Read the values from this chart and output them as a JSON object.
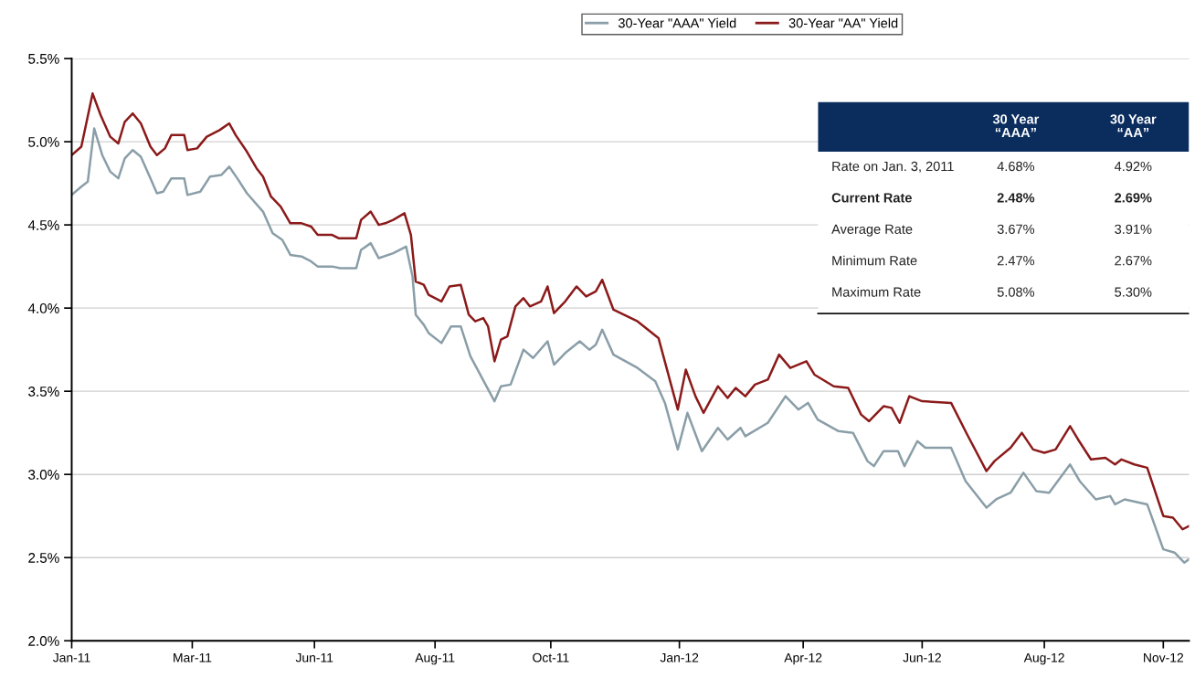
{
  "chart_data": {
    "type": "line",
    "x": [
      "2011-01-03",
      "2011-01-09",
      "2011-01-16",
      "2011-01-21",
      "2011-01-27",
      "2011-02-01",
      "2011-02-05",
      "2011-02-10",
      "2011-02-15",
      "2011-02-21",
      "2011-02-25",
      "2011-03-02",
      "2011-03-06",
      "2011-03-14",
      "2011-03-16",
      "2011-03-22",
      "2011-03-28",
      "2011-04-05",
      "2011-04-11",
      "2011-04-15",
      "2011-04-22",
      "2011-04-28",
      "2011-05-02",
      "2011-05-07",
      "2011-05-13",
      "2011-05-19",
      "2011-05-26",
      "2011-06-01",
      "2011-06-05",
      "2011-06-14",
      "2011-06-18",
      "2011-06-29",
      "2011-07-02",
      "2011-07-08",
      "2011-07-13",
      "2011-07-17",
      "2011-07-22",
      "2011-07-29",
      "2011-08-02",
      "2011-08-05",
      "2011-08-10",
      "2011-08-13",
      "2011-08-21",
      "2011-08-26",
      "2011-09-02",
      "2011-09-07",
      "2011-09-11",
      "2011-09-16",
      "2011-09-19",
      "2011-09-23",
      "2011-09-27",
      "2011-10-01",
      "2011-10-06",
      "2011-10-11",
      "2011-10-15",
      "2011-10-22",
      "2011-10-26",
      "2011-10-30",
      "2011-11-06",
      "2011-11-13",
      "2011-11-19",
      "2011-11-25",
      "2011-11-29",
      "2011-12-06",
      "2011-12-21",
      "2012-01-03",
      "2012-01-15",
      "2012-01-20",
      "2012-01-26",
      "2012-01-31",
      "2012-02-09",
      "2012-02-15",
      "2012-02-20",
      "2012-02-26",
      "2012-03-03",
      "2012-03-11",
      "2012-03-18",
      "2012-03-25",
      "2012-04-04",
      "2012-04-09",
      "2012-04-21",
      "2012-04-30",
      "2012-05-08",
      "2012-05-13",
      "2012-05-22",
      "2012-05-27",
      "2012-06-01",
      "2012-06-07",
      "2012-06-15",
      "2012-07-03",
      "2012-07-13",
      "2012-07-25",
      "2012-07-30",
      "2012-08-09",
      "2012-08-16",
      "2012-08-23",
      "2012-08-30",
      "2012-09-06",
      "2012-09-15",
      "2012-09-20",
      "2012-09-28",
      "2012-10-07",
      "2012-10-13",
      "2012-10-17",
      "2012-10-25",
      "2012-11-02",
      "2012-11-12",
      "2012-11-18",
      "2012-11-24",
      "2012-11-28"
    ],
    "series": [
      {
        "name": "30-Year \"AAA\" Yield",
        "color": "#8a9ea8",
        "x": [
          "2011-01-03",
          "2011-01-09",
          "2011-01-13",
          "2011-01-17",
          "2011-01-22",
          "2011-01-27",
          "2011-02-01",
          "2011-02-05",
          "2011-02-10",
          "2011-02-15",
          "2011-02-21",
          "2011-02-25",
          "2011-03-01",
          "2011-03-06",
          "2011-03-14",
          "2011-03-16",
          "2011-03-24",
          "2011-03-30",
          "2011-04-06",
          "2011-04-11",
          "2011-04-16",
          "2011-04-22",
          "2011-05-02",
          "2011-05-08",
          "2011-05-14",
          "2011-05-19",
          "2011-05-26",
          "2011-06-01",
          "2011-06-05",
          "2011-06-14",
          "2011-06-19",
          "2011-06-29",
          "2011-07-02",
          "2011-07-08",
          "2011-07-13",
          "2011-07-22",
          "2011-07-30",
          "2011-08-03",
          "2011-08-05",
          "2011-08-10",
          "2011-08-13",
          "2011-08-21",
          "2011-08-27",
          "2011-09-02",
          "2011-09-08",
          "2011-09-23",
          "2011-09-27",
          "2011-10-03",
          "2011-10-11",
          "2011-10-17",
          "2011-10-26",
          "2011-10-30",
          "2011-11-06",
          "2011-11-15",
          "2011-11-21",
          "2011-11-25",
          "2011-11-29",
          "2011-12-06",
          "2011-12-21",
          "2012-01-01",
          "2012-01-07",
          "2012-01-15",
          "2012-01-21",
          "2012-01-30",
          "2012-02-09",
          "2012-02-15",
          "2012-02-23",
          "2012-02-26",
          "2012-03-11",
          "2012-03-22",
          "2012-03-30",
          "2012-04-05",
          "2012-04-11",
          "2012-04-24",
          "2012-05-03",
          "2012-05-12",
          "2012-05-16",
          "2012-05-22",
          "2012-05-31",
          "2012-06-04",
          "2012-06-12",
          "2012-06-17",
          "2012-07-03",
          "2012-07-12",
          "2012-07-25",
          "2012-07-31",
          "2012-08-09",
          "2012-08-17",
          "2012-08-25",
          "2012-09-02",
          "2012-09-15",
          "2012-09-21",
          "2012-10-01",
          "2012-10-10",
          "2012-10-13",
          "2012-10-19",
          "2012-11-02",
          "2012-11-12",
          "2012-11-19",
          "2012-11-25",
          "2012-11-28"
        ],
        "values": [
          4.68,
          4.73,
          4.76,
          5.08,
          4.92,
          4.82,
          4.78,
          4.9,
          4.95,
          4.91,
          4.78,
          4.69,
          4.7,
          4.78,
          4.78,
          4.68,
          4.7,
          4.79,
          4.8,
          4.85,
          4.78,
          4.69,
          4.58,
          4.45,
          4.41,
          4.32,
          4.31,
          4.28,
          4.25,
          4.25,
          4.24,
          4.24,
          4.35,
          4.39,
          4.3,
          4.33,
          4.37,
          4.19,
          3.96,
          3.9,
          3.85,
          3.79,
          3.89,
          3.89,
          3.71,
          3.44,
          3.53,
          3.54,
          3.75,
          3.7,
          3.8,
          3.66,
          3.73,
          3.8,
          3.75,
          3.78,
          3.87,
          3.72,
          3.64,
          3.56,
          3.43,
          3.15,
          3.37,
          3.14,
          3.28,
          3.21,
          3.28,
          3.23,
          3.31,
          3.47,
          3.39,
          3.43,
          3.33,
          3.26,
          3.25,
          3.08,
          3.05,
          3.14,
          3.14,
          3.05,
          3.2,
          3.16,
          3.16,
          2.96,
          2.8,
          2.85,
          2.89,
          3.01,
          2.9,
          2.89,
          3.06,
          2.96,
          2.85,
          2.87,
          2.82,
          2.85,
          2.82,
          2.55,
          2.53,
          2.47,
          2.49
        ]
      },
      {
        "name": "30-Year \"AA\" Yield",
        "color": "#8b1a1a",
        "values": [
          4.92,
          4.97,
          5.29,
          5.16,
          5.03,
          4.99,
          5.12,
          5.17,
          5.11,
          4.97,
          4.92,
          4.96,
          5.04,
          5.04,
          4.95,
          4.96,
          5.03,
          5.07,
          5.11,
          5.04,
          4.94,
          4.84,
          4.79,
          4.67,
          4.61,
          4.51,
          4.51,
          4.49,
          4.44,
          4.44,
          4.42,
          4.42,
          4.53,
          4.58,
          4.5,
          4.51,
          4.53,
          4.57,
          4.44,
          4.16,
          4.14,
          4.08,
          4.04,
          4.13,
          4.14,
          3.96,
          3.92,
          3.94,
          3.89,
          3.68,
          3.81,
          3.83,
          4.01,
          4.06,
          4.01,
          4.04,
          4.13,
          3.97,
          4.04,
          4.13,
          4.07,
          4.1,
          4.17,
          3.99,
          3.92,
          3.82,
          3.39,
          3.63,
          3.47,
          3.37,
          3.53,
          3.46,
          3.52,
          3.47,
          3.54,
          3.57,
          3.72,
          3.64,
          3.68,
          3.6,
          3.53,
          3.52,
          3.36,
          3.32,
          3.41,
          3.4,
          3.31,
          3.47,
          3.44,
          3.43,
          3.24,
          3.02,
          3.08,
          3.16,
          3.25,
          3.15,
          3.13,
          3.15,
          3.29,
          3.21,
          3.09,
          3.1,
          3.06,
          3.09,
          3.06,
          3.04,
          2.75,
          2.74,
          2.67,
          2.69
        ]
      }
    ],
    "xlim": [
      "2011-01-03",
      "2012-11-28"
    ],
    "xticks": [
      {
        "value": "2011-01-03",
        "label": "Jan-11"
      },
      {
        "value": "2011-03-19",
        "label": "Mar-11"
      },
      {
        "value": "2011-06-03",
        "label": "Jun-11"
      },
      {
        "value": "2011-08-17",
        "label": "Aug-11"
      },
      {
        "value": "2011-10-28",
        "label": "Oct-11"
      },
      {
        "value": "2012-01-16",
        "label": "Jan-12"
      },
      {
        "value": "2012-04-02",
        "label": "Apr-12"
      },
      {
        "value": "2012-06-15",
        "label": "Jun-12"
      },
      {
        "value": "2012-08-30",
        "label": "Aug-12"
      },
      {
        "value": "2012-11-12",
        "label": "Nov-12"
      }
    ],
    "ylim": [
      2.0,
      5.5
    ],
    "yticks": [
      {
        "value": 2.0,
        "label": "2.0%"
      },
      {
        "value": 2.5,
        "label": "2.5%"
      },
      {
        "value": 3.0,
        "label": "3.0%"
      },
      {
        "value": 3.5,
        "label": "3.5%"
      },
      {
        "value": 4.0,
        "label": "4.0%"
      },
      {
        "value": 4.5,
        "label": "4.5%"
      },
      {
        "value": 5.0,
        "label": "5.0%"
      },
      {
        "value": 5.5,
        "label": "5.5%"
      }
    ],
    "grid": "y",
    "legend": "top",
    "marker": "none",
    "line_style": "solid",
    "annotations": [
      "30 Year\n“AAA”",
      "30 Year\n“AA”",
      "Rate on Jan. 3, 2011",
      "4.68%",
      "4.92%",
      "Current Rate",
      "2.48%",
      "2.69%",
      "Average Rate",
      "3.67%",
      "3.91%",
      "Minimum Rate",
      "2.47%",
      "2.67%",
      "Maximum Rate",
      "5.08%",
      "5.30%"
    ]
  }
}
